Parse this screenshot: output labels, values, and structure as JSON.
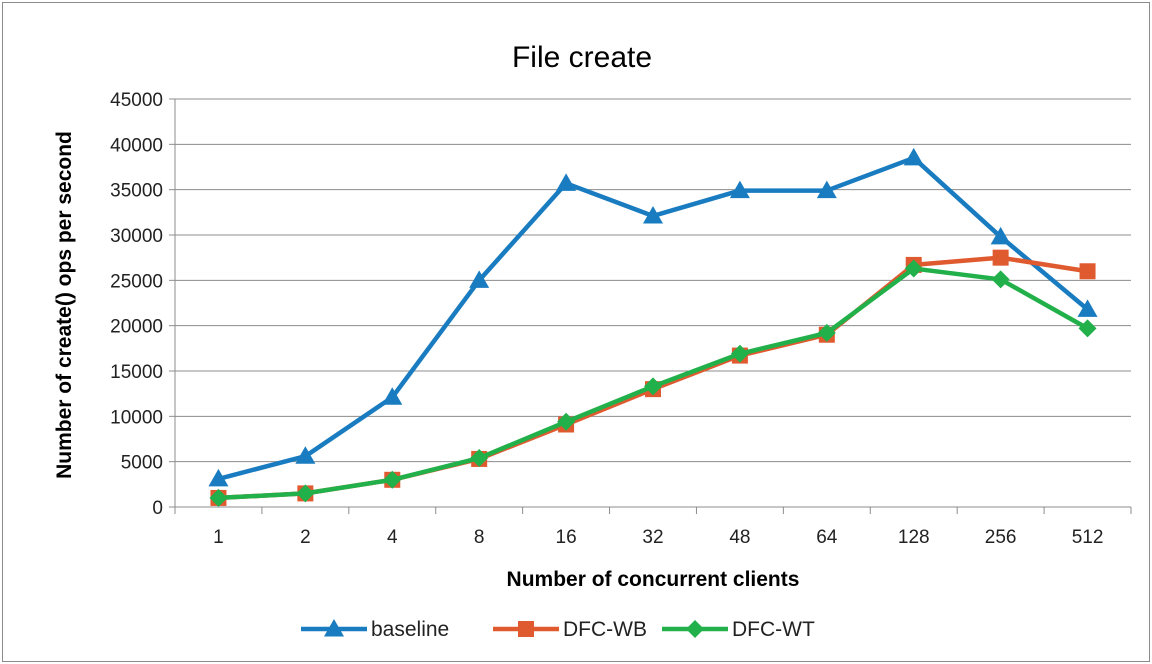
{
  "chart_data": {
    "type": "line",
    "title": "File create",
    "xlabel": "Number of concurrent clients",
    "ylabel": "Number of create() ops per second",
    "categories": [
      "1",
      "2",
      "4",
      "8",
      "16",
      "32",
      "48",
      "64",
      "128",
      "256",
      "512"
    ],
    "ylim": [
      0,
      45000
    ],
    "yticks": [
      0,
      5000,
      10000,
      15000,
      20000,
      25000,
      30000,
      35000,
      40000,
      45000
    ],
    "grid": true,
    "legend_position": "bottom",
    "series": [
      {
        "name": "baseline",
        "color": "#1a7cc0",
        "marker": "triangle",
        "values": [
          3100,
          5600,
          12100,
          25000,
          35700,
          32100,
          34900,
          34900,
          38500,
          29800,
          21800
        ]
      },
      {
        "name": "DFC-WB",
        "color": "#e05a30",
        "marker": "square",
        "values": [
          1000,
          1500,
          3000,
          5300,
          9100,
          13000,
          16700,
          19000,
          26700,
          27500,
          26000
        ]
      },
      {
        "name": "DFC-WT",
        "color": "#22b04a",
        "marker": "diamond",
        "values": [
          1000,
          1500,
          3000,
          5400,
          9400,
          13300,
          16900,
          19200,
          26300,
          25100,
          19700
        ]
      }
    ]
  }
}
